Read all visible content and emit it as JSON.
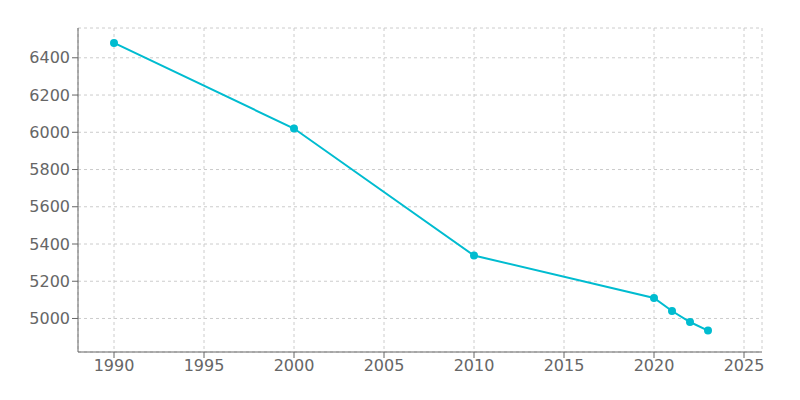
{
  "chart_data": {
    "type": "line",
    "x": [
      1990,
      2000,
      2010,
      2020,
      2021,
      2022,
      2023
    ],
    "values": [
      6480,
      6020,
      5338,
      5110,
      5040,
      4981,
      4935
    ],
    "color": "#00BCD0",
    "marker": "circle",
    "xlim": [
      1988,
      2026
    ],
    "ylim": [
      4820,
      6560
    ],
    "xticks": [
      1990,
      1995,
      2000,
      2005,
      2010,
      2015,
      2020,
      2025
    ],
    "yticks": [
      5000,
      5200,
      5400,
      5600,
      5800,
      6000,
      6200,
      6400
    ],
    "grid": true
  }
}
